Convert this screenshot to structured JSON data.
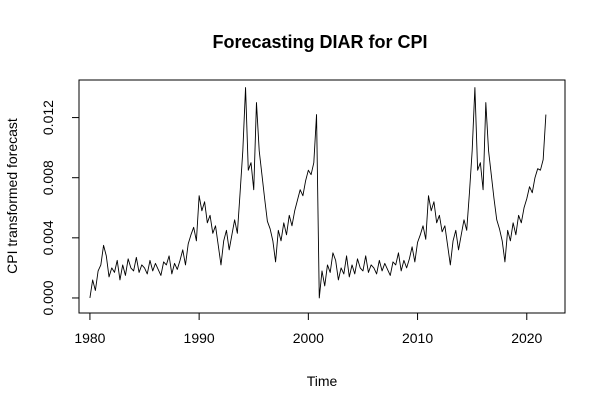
{
  "chart_data": {
    "type": "line",
    "title": "Forecasting DIAR for CPI",
    "xlabel": "Time",
    "ylabel": "CPI transformed forecast",
    "xlim": [
      1979,
      2023.5
    ],
    "ylim": [
      -0.001,
      0.0145
    ],
    "x_ticks": [
      1980,
      1990,
      2000,
      2010,
      2020
    ],
    "x_tick_labels": [
      "1980",
      "1990",
      "2000",
      "2010",
      "2020"
    ],
    "y_ticks": [
      0.0,
      0.004,
      0.008,
      0.012
    ],
    "y_tick_labels": [
      "0.000",
      "0.004",
      "0.008",
      "0.012"
    ],
    "grid": false,
    "legend": "none",
    "line_color": "#000000",
    "series": [
      {
        "x": [
          1980.0,
          1980.25,
          1980.5,
          1980.75,
          1981.0,
          1981.25,
          1981.5,
          1981.75,
          1982.0,
          1982.25,
          1982.5,
          1982.75,
          1983.0,
          1983.25,
          1983.5,
          1983.75,
          1984.0,
          1984.25,
          1984.5,
          1984.75,
          1985.0,
          1985.25,
          1985.5,
          1985.75,
          1986.0,
          1986.25,
          1986.5,
          1986.75,
          1987.0,
          1987.25,
          1987.5,
          1987.75,
          1988.0,
          1988.25,
          1988.5,
          1988.75,
          1989.0,
          1989.25,
          1989.5,
          1989.75,
          1990.0,
          1990.25,
          1990.5,
          1990.75,
          1991.0,
          1991.25,
          1991.5,
          1991.75,
          1992.0,
          1992.25,
          1992.5,
          1992.75,
          1993.0,
          1993.25,
          1993.5,
          1993.75,
          1994.0,
          1994.25,
          1994.5,
          1994.75,
          1995.0,
          1995.25,
          1995.5,
          1995.75,
          1996.0,
          1996.25,
          1996.5,
          1996.75,
          1997.0,
          1997.25,
          1997.5,
          1997.75,
          1998.0,
          1998.25,
          1998.5,
          1998.75,
          1999.0,
          1999.25,
          1999.5,
          1999.75,
          2000.0,
          2000.25,
          2000.5,
          2000.75,
          2001.0,
          2001.25,
          2001.5,
          2001.75,
          2002.0,
          2002.25,
          2002.5,
          2002.75,
          2003.0,
          2003.25,
          2003.5,
          2003.75,
          2004.0,
          2004.25,
          2004.5,
          2004.75,
          2005.0,
          2005.25,
          2005.5,
          2005.75,
          2006.0,
          2006.25,
          2006.5,
          2006.75,
          2007.0,
          2007.25,
          2007.5,
          2007.75,
          2008.0,
          2008.25,
          2008.5,
          2008.75,
          2009.0,
          2009.25,
          2009.5,
          2009.75,
          2010.0,
          2010.25,
          2010.5,
          2010.75,
          2011.0,
          2011.25,
          2011.5,
          2011.75,
          2012.0,
          2012.25,
          2012.5,
          2012.75,
          2013.0,
          2013.25,
          2013.5,
          2013.75,
          2014.0,
          2014.25,
          2014.5,
          2014.75,
          2015.0,
          2015.25,
          2015.5,
          2015.75,
          2016.0,
          2016.25,
          2016.5,
          2016.75,
          2017.0,
          2017.25,
          2017.5,
          2017.75,
          2018.0,
          2018.25,
          2018.5,
          2018.75,
          2019.0,
          2019.25,
          2019.5,
          2019.75,
          2020.0,
          2020.25,
          2020.5,
          2020.75,
          2021.0,
          2021.25,
          2021.5,
          2021.75
        ],
        "values": [
          0.0,
          0.0012,
          0.0005,
          0.0018,
          0.0022,
          0.0035,
          0.0028,
          0.0014,
          0.002,
          0.0017,
          0.0025,
          0.0012,
          0.0022,
          0.0015,
          0.0026,
          0.002,
          0.0018,
          0.0027,
          0.0017,
          0.0022,
          0.002,
          0.0016,
          0.0025,
          0.0018,
          0.0023,
          0.0019,
          0.0015,
          0.0024,
          0.0022,
          0.0028,
          0.0016,
          0.0023,
          0.0019,
          0.0025,
          0.0032,
          0.0022,
          0.0036,
          0.0042,
          0.0047,
          0.0038,
          0.0068,
          0.0058,
          0.0064,
          0.005,
          0.0055,
          0.0043,
          0.0048,
          0.0035,
          0.0022,
          0.0038,
          0.0045,
          0.0032,
          0.0042,
          0.0052,
          0.0043,
          0.007,
          0.0098,
          0.014,
          0.0085,
          0.009,
          0.0072,
          0.013,
          0.0098,
          0.0082,
          0.0066,
          0.0051,
          0.0046,
          0.0038,
          0.0024,
          0.0045,
          0.0038,
          0.005,
          0.0042,
          0.0055,
          0.0048,
          0.0058,
          0.0065,
          0.0072,
          0.0068,
          0.0078,
          0.0085,
          0.0082,
          0.009,
          0.0122,
          0.0,
          0.0018,
          0.0008,
          0.0022,
          0.0017,
          0.003,
          0.0025,
          0.0012,
          0.002,
          0.0016,
          0.0028,
          0.0014,
          0.0022,
          0.0016,
          0.0026,
          0.002,
          0.0018,
          0.0028,
          0.0017,
          0.0022,
          0.002,
          0.0016,
          0.0025,
          0.0018,
          0.0023,
          0.0019,
          0.0015,
          0.0024,
          0.0022,
          0.003,
          0.0018,
          0.0025,
          0.002,
          0.0026,
          0.0034,
          0.0024,
          0.0037,
          0.0042,
          0.0048,
          0.0039,
          0.0068,
          0.0058,
          0.0064,
          0.005,
          0.0055,
          0.0044,
          0.0048,
          0.0035,
          0.0022,
          0.0038,
          0.0045,
          0.0032,
          0.0042,
          0.0052,
          0.0045,
          0.007,
          0.0098,
          0.014,
          0.0085,
          0.009,
          0.0072,
          0.013,
          0.0098,
          0.0082,
          0.0066,
          0.0052,
          0.0046,
          0.0038,
          0.0024,
          0.0045,
          0.0038,
          0.005,
          0.0042,
          0.0055,
          0.005,
          0.006,
          0.0066,
          0.0074,
          0.007,
          0.008,
          0.0086,
          0.0085,
          0.0092,
          0.0122
        ]
      }
    ]
  }
}
